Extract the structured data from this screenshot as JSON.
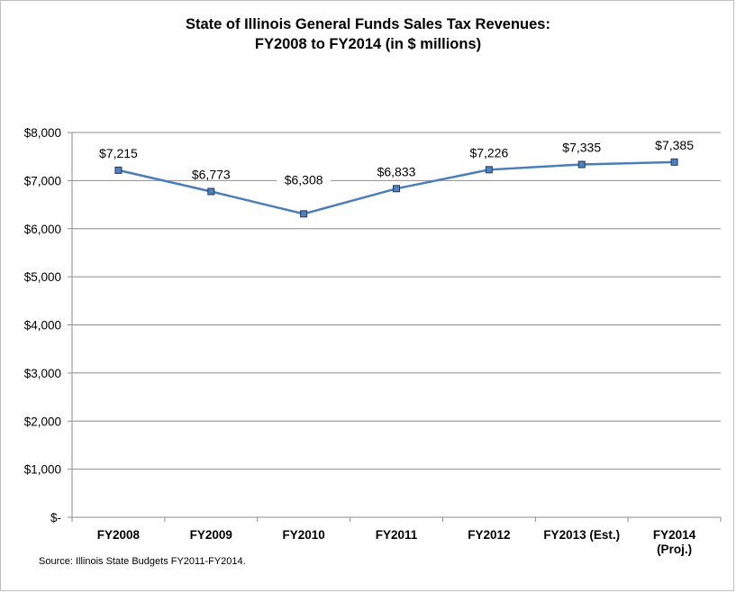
{
  "chart_data": {
    "type": "line",
    "title": "State of Illinois General Funds Sales Tax Revenues:",
    "subtitle": "FY2008 to FY2014 (in $ millions)",
    "categories": [
      [
        "FY2008"
      ],
      [
        "FY2009"
      ],
      [
        "FY2010"
      ],
      [
        "FY2011"
      ],
      [
        "FY2012"
      ],
      [
        "FY2013 (Est.)"
      ],
      [
        "FY2014",
        "(Proj.)"
      ]
    ],
    "values": [
      7215,
      6773,
      6308,
      6833,
      7226,
      7335,
      7385
    ],
    "data_labels": [
      "$7,215",
      "$6,773",
      "$6,308",
      "$6,833",
      "$7,226",
      "$7,335",
      "$7,385"
    ],
    "yticks": [
      {
        "value": 0,
        "label": "$-"
      },
      {
        "value": 1000,
        "label": "$1,000"
      },
      {
        "value": 2000,
        "label": "$2,000"
      },
      {
        "value": 3000,
        "label": "$3,000"
      },
      {
        "value": 4000,
        "label": "$4,000"
      },
      {
        "value": 5000,
        "label": "$5,000"
      },
      {
        "value": 6000,
        "label": "$6,000"
      },
      {
        "value": 7000,
        "label": "$7,000"
      },
      {
        "value": 8000,
        "label": "$8,000"
      }
    ],
    "ylim": [
      0,
      8000
    ],
    "grid": true,
    "line_color": "#4a7ebb",
    "marker_color": "#4f81bd",
    "source": "Source: Illinois State Budgets FY2011-FY2014."
  }
}
